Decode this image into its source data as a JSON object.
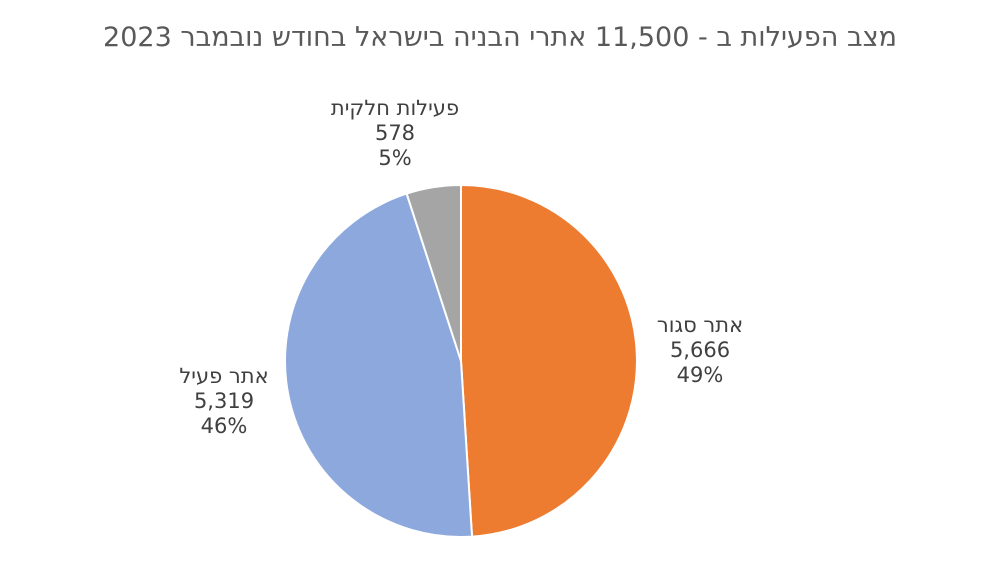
{
  "page": {
    "background": "#FFFFFF"
  },
  "title": {
    "text": "מצב הפעילות ב - 11,500 אתרי הבניה בישראל בחודש נובמבר 2023",
    "color": "#595959"
  },
  "chart_data": {
    "type": "pie",
    "title": "מצב הפעילות ב - 11,500 אתרי הבניה בישראל בחודש נובמבר 2023",
    "total_label": "11,500",
    "start_angle_deg": -90,
    "direction": "clockwise",
    "slice_border_color": "#FFFFFF",
    "legend": "none",
    "labels_style": "category, value, percent (outside slices)",
    "slices": [
      {
        "name": "אתר סגור",
        "value": 5666,
        "value_display": "5,666",
        "percent": 49,
        "percent_display": "49%",
        "color": "#ED7B30"
      },
      {
        "name": "אתר פעיל",
        "value": 5319,
        "value_display": "5,319",
        "percent": 46,
        "percent_display": "46%",
        "color": "#8CA8DC"
      },
      {
        "name": "פעילות חלקית",
        "value": 578,
        "value_display": "578",
        "percent": 5,
        "percent_display": "5%",
        "color": "#A5A5A5"
      }
    ]
  }
}
